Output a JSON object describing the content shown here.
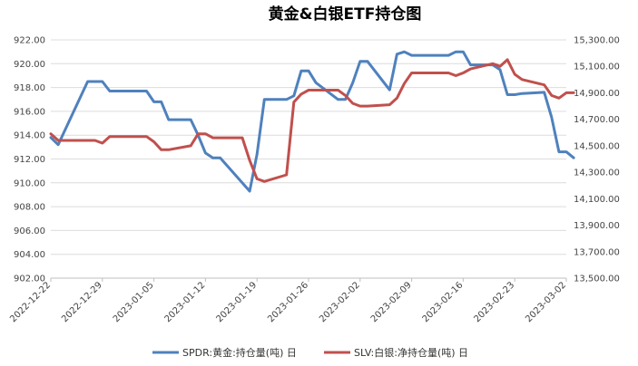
{
  "chart_data": {
    "type": "line",
    "title": "黄金&白银ETF持仓图",
    "x_ticks": [
      "2022-12-22",
      "2022-12-29",
      "2023-01-05",
      "2023-01-12",
      "2023-01-19",
      "2023-01-26",
      "2023-02-02",
      "2023-02-09",
      "2023-02-16",
      "2023-02-23",
      "2023-03-02"
    ],
    "y_left": {
      "ticks": [
        "902.00",
        "904.00",
        "906.00",
        "908.00",
        "910.00",
        "912.00",
        "914.00",
        "916.00",
        "918.00",
        "920.00",
        "922.00"
      ],
      "min": 902,
      "max": 922
    },
    "y_right": {
      "ticks": [
        "13,500.00",
        "13,700.00",
        "13,900.00",
        "14,100.00",
        "14,300.00",
        "14,500.00",
        "14,700.00",
        "14,900.00",
        "15,100.00",
        "15,300.00"
      ],
      "min": 13500,
      "max": 15300
    },
    "legend_position": "bottom",
    "grid": true,
    "series": [
      {
        "name": "SPDR:黄金:持仓量(吨) 日",
        "axis": "left",
        "color": "#4f81bd",
        "points": [
          [
            "2022-12-22",
            913.8
          ],
          [
            "2022-12-23",
            913.2
          ],
          [
            "2022-12-27",
            918.5
          ],
          [
            "2022-12-28",
            918.5
          ],
          [
            "2022-12-29",
            918.5
          ],
          [
            "2022-12-30",
            917.7
          ],
          [
            "2023-01-03",
            917.7
          ],
          [
            "2023-01-04",
            917.7
          ],
          [
            "2023-01-05",
            916.8
          ],
          [
            "2023-01-06",
            916.8
          ],
          [
            "2023-01-07",
            915.3
          ],
          [
            "2023-01-10",
            915.3
          ],
          [
            "2023-01-11",
            914.0
          ],
          [
            "2023-01-12",
            912.5
          ],
          [
            "2023-01-13",
            912.1
          ],
          [
            "2023-01-14",
            912.1
          ],
          [
            "2023-01-18",
            909.3
          ],
          [
            "2023-01-19",
            912.4
          ],
          [
            "2023-01-20",
            917.0
          ],
          [
            "2023-01-23",
            917.0
          ],
          [
            "2023-01-24",
            917.3
          ],
          [
            "2023-01-25",
            919.4
          ],
          [
            "2023-01-26",
            919.4
          ],
          [
            "2023-01-27",
            918.4
          ],
          [
            "2023-01-30",
            917.0
          ],
          [
            "2023-01-31",
            917.0
          ],
          [
            "2023-02-01",
            918.4
          ],
          [
            "2023-02-02",
            920.2
          ],
          [
            "2023-02-03",
            920.2
          ],
          [
            "2023-02-06",
            917.8
          ],
          [
            "2023-02-07",
            920.8
          ],
          [
            "2023-02-08",
            921.0
          ],
          [
            "2023-02-09",
            920.7
          ],
          [
            "2023-02-10",
            920.7
          ],
          [
            "2023-02-14",
            920.7
          ],
          [
            "2023-02-15",
            921.0
          ],
          [
            "2023-02-16",
            921.0
          ],
          [
            "2023-02-17",
            919.9
          ],
          [
            "2023-02-20",
            919.9
          ],
          [
            "2023-02-21",
            919.5
          ],
          [
            "2023-02-22",
            917.4
          ],
          [
            "2023-02-23",
            917.4
          ],
          [
            "2023-02-24",
            917.5
          ],
          [
            "2023-02-27",
            917.6
          ],
          [
            "2023-02-28",
            915.5
          ],
          [
            "2023-03-01",
            912.6
          ],
          [
            "2023-03-02",
            912.6
          ],
          [
            "2023-03-03",
            912.1
          ]
        ]
      },
      {
        "name": "SLV:白银:净持仓量(吨) 日",
        "axis": "right",
        "color": "#c0504d",
        "points": [
          [
            "2022-12-22",
            14590
          ],
          [
            "2022-12-23",
            14540
          ],
          [
            "2022-12-27",
            14540
          ],
          [
            "2022-12-28",
            14540
          ],
          [
            "2022-12-29",
            14520
          ],
          [
            "2022-12-30",
            14570
          ],
          [
            "2023-01-03",
            14570
          ],
          [
            "2023-01-04",
            14570
          ],
          [
            "2023-01-05",
            14530
          ],
          [
            "2023-01-06",
            14470
          ],
          [
            "2023-01-07",
            14470
          ],
          [
            "2023-01-10",
            14500
          ],
          [
            "2023-01-11",
            14590
          ],
          [
            "2023-01-12",
            14590
          ],
          [
            "2023-01-13",
            14560
          ],
          [
            "2023-01-14",
            14560
          ],
          [
            "2023-01-17",
            14560
          ],
          [
            "2023-01-18",
            14390
          ],
          [
            "2023-01-19",
            14250
          ],
          [
            "2023-01-20",
            14230
          ],
          [
            "2023-01-23",
            14280
          ],
          [
            "2023-01-24",
            14830
          ],
          [
            "2023-01-25",
            14890
          ],
          [
            "2023-01-26",
            14920
          ],
          [
            "2023-01-27",
            14920
          ],
          [
            "2023-01-30",
            14920
          ],
          [
            "2023-01-31",
            14880
          ],
          [
            "2023-02-01",
            14820
          ],
          [
            "2023-02-02",
            14800
          ],
          [
            "2023-02-03",
            14800
          ],
          [
            "2023-02-06",
            14810
          ],
          [
            "2023-02-07",
            14860
          ],
          [
            "2023-02-08",
            14970
          ],
          [
            "2023-02-09",
            15050
          ],
          [
            "2023-02-10",
            15050
          ],
          [
            "2023-02-14",
            15050
          ],
          [
            "2023-02-15",
            15030
          ],
          [
            "2023-02-16",
            15050
          ],
          [
            "2023-02-17",
            15080
          ],
          [
            "2023-02-20",
            15120
          ],
          [
            "2023-02-21",
            15100
          ],
          [
            "2023-02-22",
            15150
          ],
          [
            "2023-02-23",
            15040
          ],
          [
            "2023-02-24",
            15000
          ],
          [
            "2023-02-27",
            14960
          ],
          [
            "2023-02-28",
            14880
          ],
          [
            "2023-03-01",
            14860
          ],
          [
            "2023-03-02",
            14900
          ],
          [
            "2023-03-03",
            14900
          ]
        ]
      }
    ]
  }
}
